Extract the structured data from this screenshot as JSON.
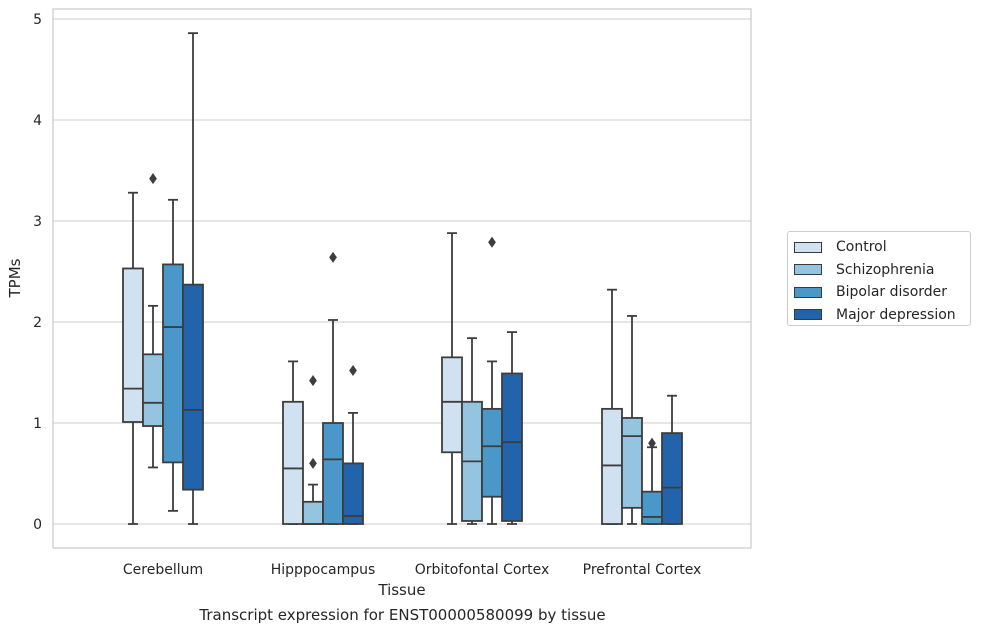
{
  "caption": "Transcript expression for ENST00000580099 by tissue",
  "chart_data": {
    "type": "box",
    "xlabel": "Tissue",
    "ylabel": "TPMs",
    "ylim": [
      -0.22,
      5.1
    ],
    "yticks": [
      0,
      1,
      2,
      3,
      4,
      5
    ],
    "grid": true,
    "legend_position": "right",
    "categories": [
      "Cerebellum",
      "Hipppocampus",
      "Orbitofontal Cortex",
      "Prefrontal Cortex"
    ],
    "series": [
      {
        "name": "Control",
        "color": "#d0e1f2",
        "boxes": [
          {
            "whislo": 0.0,
            "q1": 1.01,
            "med": 1.34,
            "q3": 2.53,
            "whishi": 3.28,
            "fliers": []
          },
          {
            "whislo": 0.0,
            "q1": 0.0,
            "med": 0.55,
            "q3": 1.21,
            "whishi": 1.61,
            "fliers": []
          },
          {
            "whislo": 0.0,
            "q1": 0.71,
            "med": 1.21,
            "q3": 1.65,
            "whishi": 2.88,
            "fliers": []
          },
          {
            "whislo": 0.0,
            "q1": 0.0,
            "med": 0.58,
            "q3": 1.14,
            "whishi": 2.32,
            "fliers": []
          }
        ]
      },
      {
        "name": "Schizophrenia",
        "color": "#94c4df",
        "boxes": [
          {
            "whislo": 0.56,
            "q1": 0.97,
            "med": 1.2,
            "q3": 1.68,
            "whishi": 2.16,
            "fliers": [
              3.42
            ]
          },
          {
            "whislo": 0.0,
            "q1": 0.0,
            "med": 0.0,
            "q3": 0.22,
            "whishi": 0.39,
            "fliers": [
              0.6,
              1.42
            ]
          },
          {
            "whislo": 0.0,
            "q1": 0.03,
            "med": 0.62,
            "q3": 1.21,
            "whishi": 1.84,
            "fliers": []
          },
          {
            "whislo": 0.0,
            "q1": 0.16,
            "med": 0.87,
            "q3": 1.05,
            "whishi": 2.06,
            "fliers": []
          }
        ]
      },
      {
        "name": "Bipolar disorder",
        "color": "#4a98c9",
        "boxes": [
          {
            "whislo": 0.13,
            "q1": 0.61,
            "med": 1.95,
            "q3": 2.57,
            "whishi": 3.21,
            "fliers": []
          },
          {
            "whislo": 0.0,
            "q1": 0.0,
            "med": 0.64,
            "q3": 1.0,
            "whishi": 2.02,
            "fliers": [
              2.64
            ]
          },
          {
            "whislo": 0.0,
            "q1": 0.27,
            "med": 0.77,
            "q3": 1.14,
            "whishi": 1.61,
            "fliers": [
              2.79
            ]
          },
          {
            "whislo": 0.0,
            "q1": 0.0,
            "med": 0.07,
            "q3": 0.32,
            "whishi": 0.76,
            "fliers": [
              0.8
            ]
          }
        ]
      },
      {
        "name": "Major depression",
        "color": "#2164ab",
        "boxes": [
          {
            "whislo": 0.0,
            "q1": 0.34,
            "med": 1.13,
            "q3": 2.37,
            "whishi": 4.86,
            "fliers": []
          },
          {
            "whislo": 0.0,
            "q1": 0.0,
            "med": 0.08,
            "q3": 0.6,
            "whishi": 1.1,
            "fliers": [
              1.52
            ]
          },
          {
            "whislo": 0.0,
            "q1": 0.03,
            "med": 0.81,
            "q3": 1.49,
            "whishi": 1.9,
            "fliers": []
          },
          {
            "whislo": 0.0,
            "q1": 0.0,
            "med": 0.36,
            "q3": 0.9,
            "whishi": 1.27,
            "fliers": []
          }
        ]
      }
    ]
  }
}
